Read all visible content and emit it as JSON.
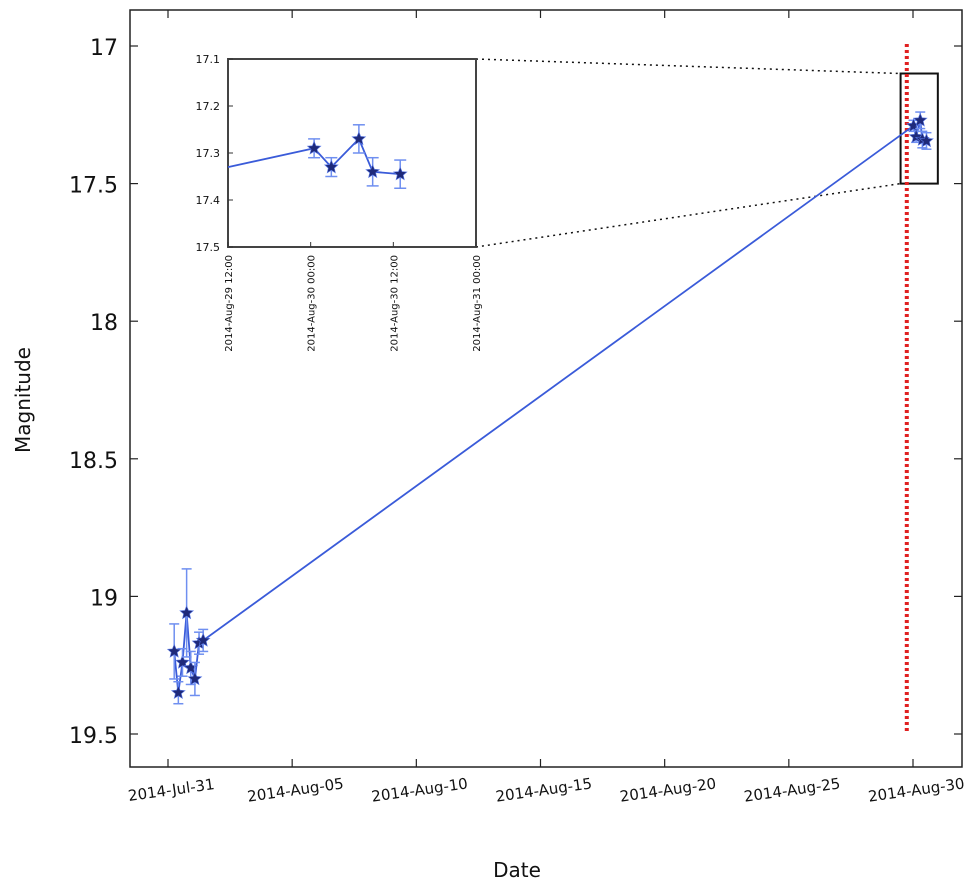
{
  "chart_data": {
    "type": "scatter",
    "title": "",
    "xlabel": "Date",
    "ylabel": "Magnitude",
    "x_is_date": true,
    "xlim": [
      "2014-07-31T00:00",
      "2014-08-30T00:00"
    ],
    "ylim": [
      17.0,
      19.5
    ],
    "y_inverted": true,
    "x_tick_labels": [
      "2014-Jul-31",
      "2014-Aug-05",
      "2014-Aug-10",
      "2014-Aug-15",
      "2014-Aug-20",
      "2014-Aug-25",
      "2014-Aug-30"
    ],
    "y_tick_labels": [
      "17",
      "17.5",
      "18",
      "18.5",
      "19",
      "19.5"
    ],
    "grid": false,
    "legend": null,
    "colors": {
      "series": "#3a5bd9",
      "marker": "#1f2a7a",
      "error_bar": "#6f8ff0",
      "vertical_line": "#e02020"
    },
    "vertical_line": {
      "x": "2014-08-29T18:00",
      "style": "dotted",
      "color": "#e02020"
    },
    "zoom_box": {
      "x_range": [
        "2014-08-29T12:00",
        "2014-08-31T00:00"
      ],
      "y_range": [
        17.1,
        17.5
      ]
    },
    "series": [
      {
        "marker": "star",
        "points": [
          {
            "x": "2014-07-31T06:00",
            "y": 19.2,
            "err": 0.1
          },
          {
            "x": "2014-07-31T10:00",
            "y": 19.35,
            "err": 0.04
          },
          {
            "x": "2014-07-31T14:00",
            "y": 19.24,
            "err": 0.05
          },
          {
            "x": "2014-07-31T18:00",
            "y": 19.06,
            "err": 0.16
          },
          {
            "x": "2014-07-31T22:00",
            "y": 19.26,
            "err": 0.06
          },
          {
            "x": "2014-08-01T02:00",
            "y": 19.3,
            "err": 0.06
          },
          {
            "x": "2014-08-01T06:00",
            "y": 19.17,
            "err": 0.04
          },
          {
            "x": "2014-08-01T10:00",
            "y": 19.16,
            "err": 0.04
          },
          {
            "x": "2014-08-30T00:30",
            "y": 17.29,
            "err": 0.02
          },
          {
            "x": "2014-08-30T03:00",
            "y": 17.33,
            "err": 0.02
          },
          {
            "x": "2014-08-30T07:00",
            "y": 17.27,
            "err": 0.03
          },
          {
            "x": "2014-08-30T09:00",
            "y": 17.34,
            "err": 0.03
          },
          {
            "x": "2014-08-30T13:00",
            "y": 17.345,
            "err": 0.03
          }
        ]
      }
    ],
    "inset": {
      "xlim": [
        "2014-08-29T12:00",
        "2014-08-31T00:00"
      ],
      "ylim": [
        17.1,
        17.5
      ],
      "y_inverted": true,
      "x_tick_labels": [
        "2014-Aug-29 12:00",
        "2014-Aug-30 00:00",
        "2014-Aug-30 12:00",
        "2014-Aug-31 00:00"
      ],
      "y_tick_labels": [
        "17.1",
        "17.2",
        "17.3",
        "17.4",
        "17.5"
      ],
      "series": [
        {
          "marker": "star",
          "points": [
            {
              "x": "2014-08-29T12:00",
              "y": 17.33,
              "err": 0
            },
            {
              "x": "2014-08-30T00:30",
              "y": 17.29,
              "err": 0.02
            },
            {
              "x": "2014-08-30T03:00",
              "y": 17.33,
              "err": 0.02
            },
            {
              "x": "2014-08-30T07:00",
              "y": 17.27,
              "err": 0.03
            },
            {
              "x": "2014-08-30T09:00",
              "y": 17.34,
              "err": 0.03
            },
            {
              "x": "2014-08-30T13:00",
              "y": 17.345,
              "err": 0.03
            }
          ]
        }
      ]
    }
  }
}
